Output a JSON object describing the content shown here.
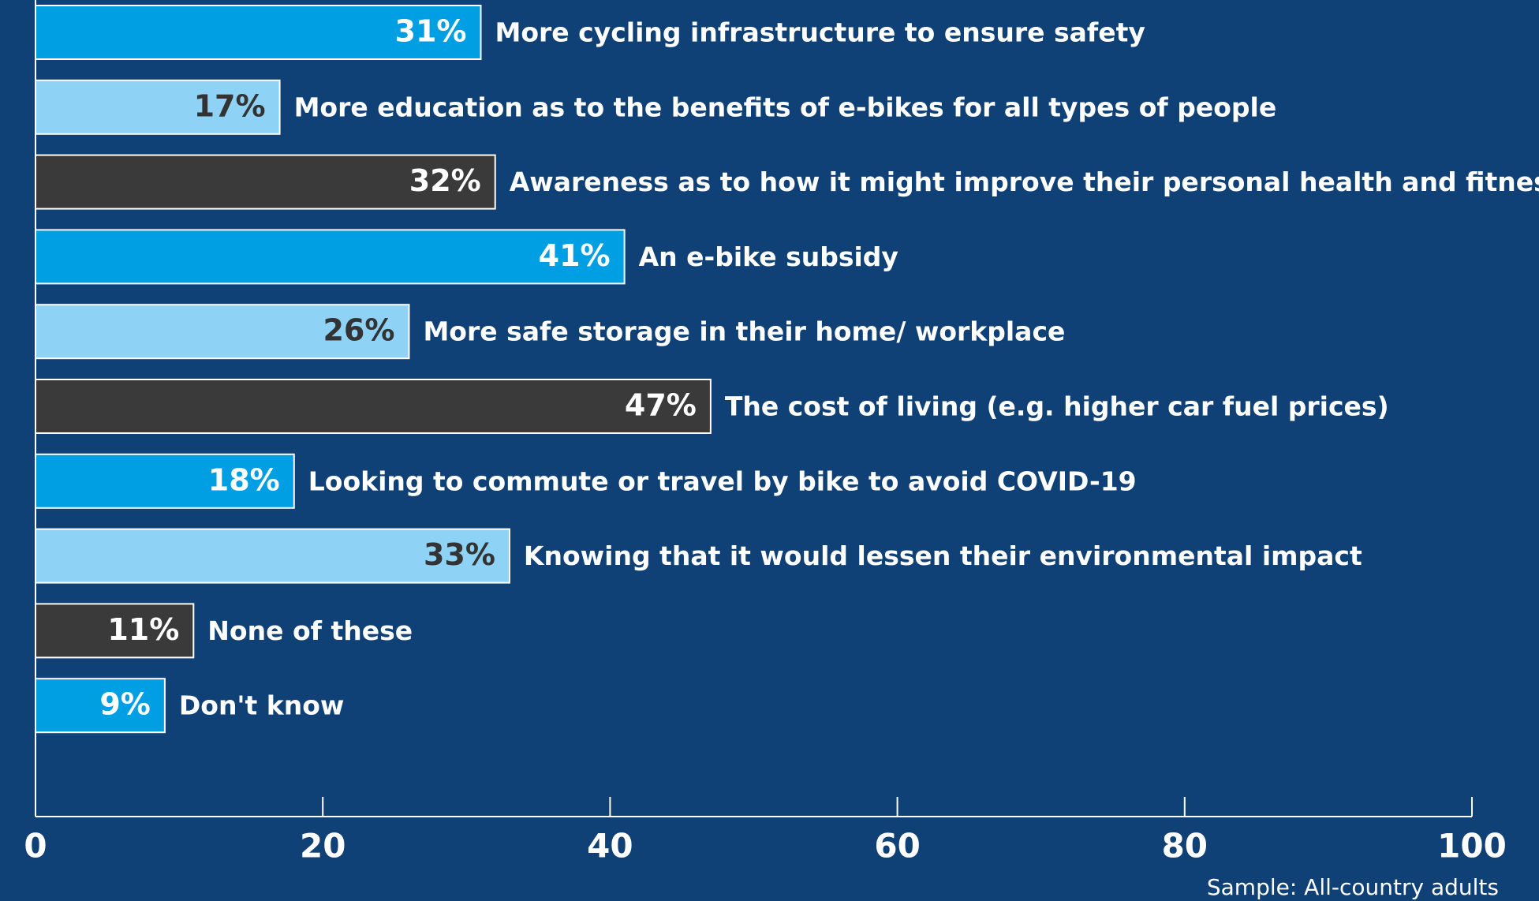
{
  "chart_data": {
    "type": "barh",
    "categories": [
      "More cycling infrastructure to ensure safety",
      "More education as to the benefits of e-bikes for all types of people",
      "Awareness as to how it might improve their personal health and fitness",
      "An e-bike subsidy",
      "More safe storage in their home/ workplace",
      "The cost of living (e.g. higher car fuel prices)",
      "Looking to commute or travel by bike to avoid COVID-19",
      "Knowing that it would lessen their environmental impact",
      "None of these",
      "Don't know"
    ],
    "values": [
      31,
      17,
      32,
      41,
      26,
      47,
      18,
      33,
      11,
      9
    ],
    "value_labels": [
      "31%",
      "17%",
      "32%",
      "41%",
      "26%",
      "47%",
      "18%",
      "33%",
      "11%",
      "9%"
    ],
    "colors": [
      "#009fe3",
      "#8ed2f5",
      "#3a3a3a",
      "#009fe3",
      "#8ed2f5",
      "#3a3a3a",
      "#009fe3",
      "#8ed2f5",
      "#3a3a3a",
      "#009fe3"
    ],
    "xlim": [
      0,
      100
    ],
    "xticks": [
      0,
      20,
      40,
      60,
      80,
      100
    ],
    "note": "Sample: All-country adults"
  }
}
